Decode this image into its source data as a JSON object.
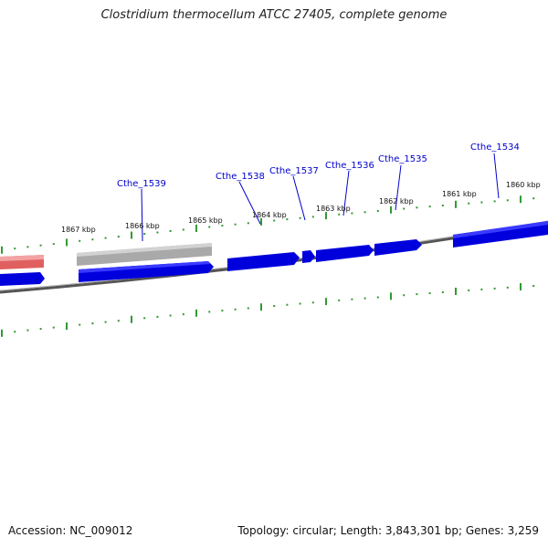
{
  "title": "Clostridium thermocellum ATCC 27405, complete genome",
  "footer": {
    "accession": "Accession: NC_009012",
    "stats": "Topology: circular; Length: 3,843,301 bp; Genes: 3,259"
  },
  "colors": {
    "gene_forward": "#0000dd",
    "gene_highlight": "#e06060",
    "gene_grey": "#aaaaaa",
    "backbone": "#777777",
    "ticks": "#339933",
    "label": "#0000cc"
  },
  "scale_ticks": [
    "1867 kbp",
    "1866 kbp",
    "1865 kbp",
    "1864 kbp",
    "1863 kbp",
    "1862 kbp",
    "1861 kbp",
    "1860 kbp"
  ],
  "genes": [
    "Cthe_1539",
    "Cthe_1538",
    "Cthe_1537",
    "Cthe_1536",
    "Cthe_1535",
    "Cthe_1534"
  ]
}
